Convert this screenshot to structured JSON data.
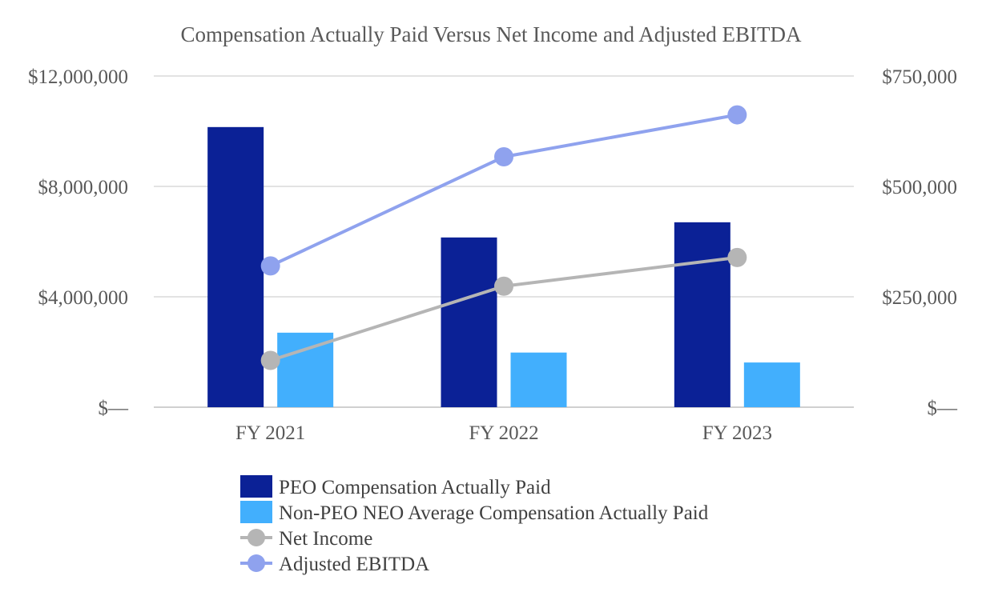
{
  "chart_data": {
    "type": "bar",
    "title": "Compensation Actually Paid Versus Net Income and Adjusted EBITDA",
    "categories": [
      "FY 2021",
      "FY 2022",
      "FY 2023"
    ],
    "y_left": {
      "ylim": [
        0,
        12000000
      ],
      "ticks": [
        0,
        4000000,
        8000000,
        12000000
      ],
      "tick_labels": [
        "$—",
        "$4,000,000",
        "$8,000,000",
        "$12,000,000"
      ]
    },
    "y_right": {
      "ylim": [
        0,
        750000
      ],
      "ticks": [
        0,
        250000,
        500000,
        750000
      ],
      "tick_labels": [
        "$—",
        "$250,000",
        "$500,000",
        "$750,000"
      ]
    },
    "grid": true,
    "legend_position": "bottom",
    "bar_series": [
      {
        "name": "PEO Compensation Actually Paid",
        "axis": "left",
        "color": "#0B2196",
        "values": [
          10150000,
          6150000,
          6700000
        ]
      },
      {
        "name": "Non-PEO NEO Average Compensation Actually Paid",
        "axis": "left",
        "color": "#42AFFD",
        "values": [
          2700000,
          1980000,
          1620000
        ]
      }
    ],
    "line_series": [
      {
        "name": "Net Income",
        "axis": "right",
        "color": "#B5B5B5",
        "values": [
          106000,
          274000,
          339000
        ]
      },
      {
        "name": "Adjusted EBITDA",
        "axis": "right",
        "color": "#8FA2EE",
        "values": [
          320000,
          567000,
          662000
        ]
      }
    ]
  }
}
